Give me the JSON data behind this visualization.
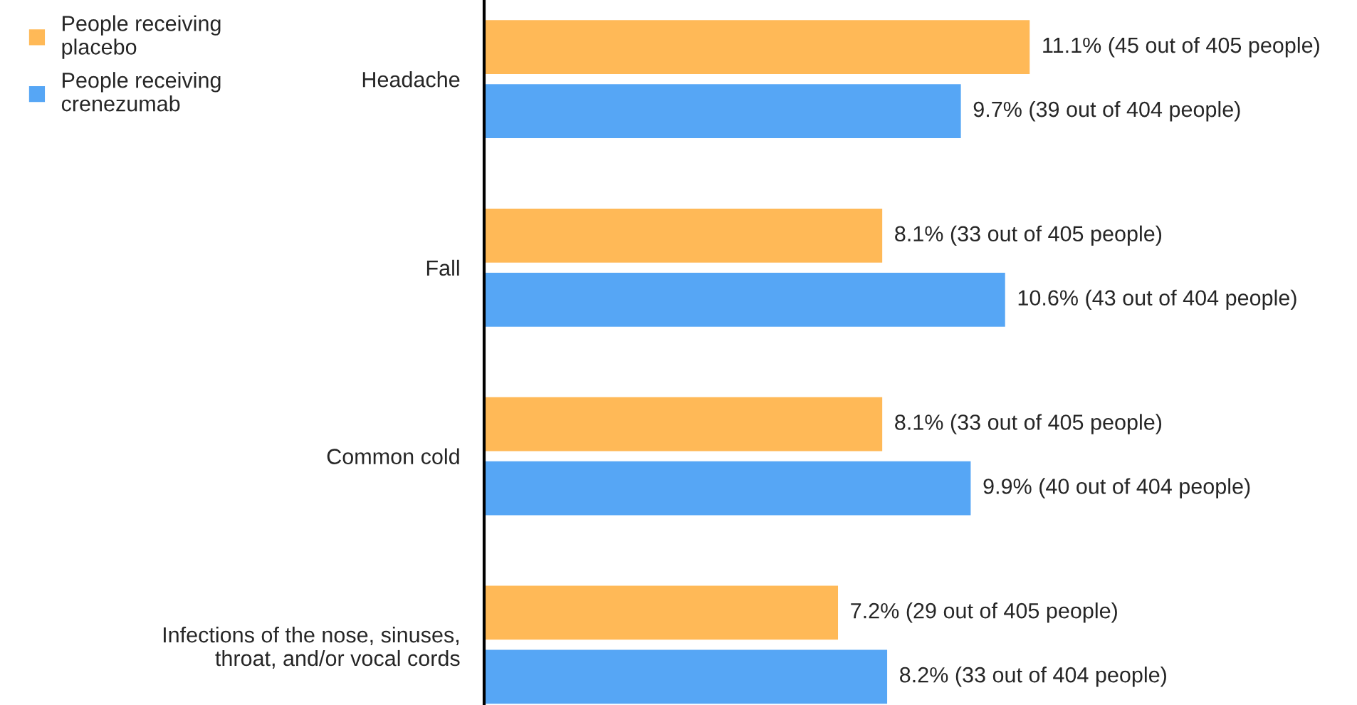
{
  "chart_data": {
    "type": "bar",
    "orientation": "horizontal",
    "categories": [
      "Headache",
      "Fall",
      "Common cold",
      "Infections of the nose, sinuses,\nthroat, and/or vocal cords"
    ],
    "series": [
      {
        "name": "People receiving\nplacebo",
        "color": "#ffb957",
        "values": [
          11.1,
          8.1,
          8.1,
          7.2
        ],
        "value_labels": [
          "11.1% (45 out of 405 people)",
          "8.1% (33 out of 405 people)",
          "8.1% (33 out of 405 people)",
          "7.2% (29 out of 405 people)"
        ]
      },
      {
        "name": "People receiving\ncrenezumab",
        "color": "#56a6f5",
        "values": [
          9.7,
          10.6,
          9.9,
          8.2
        ],
        "value_labels": [
          "9.7% (39 out of 404 people)",
          "10.6% (43 out of 404 people)",
          "9.9% (40 out of 404 people)",
          "8.2% (33 out of 404 people)"
        ]
      }
    ],
    "legend": "top left",
    "grid": false,
    "marker": "square"
  }
}
